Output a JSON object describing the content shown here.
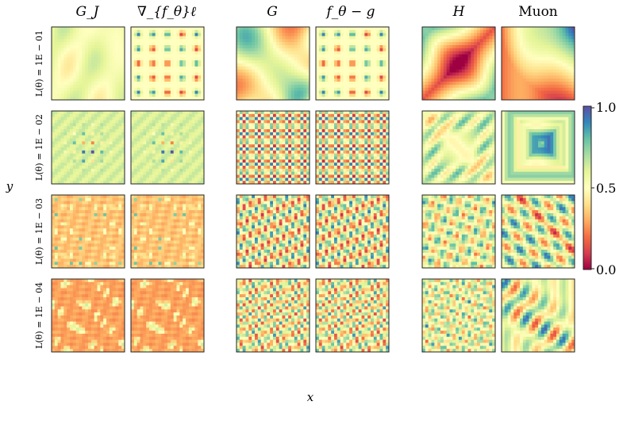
{
  "chart_data": {
    "type": "heatmap",
    "column_titles": [
      "G_J",
      "∇_{f_θ}ℓ",
      "G",
      "f_θ − g",
      "H",
      "Muon"
    ],
    "row_labels": [
      "L(θ) = 1E − 01",
      "L(θ) = 1E − 02",
      "L(θ) = 1E − 03",
      "L(θ) = 1E − 04"
    ],
    "xlabel": "x",
    "ylabel": "y",
    "colorbar": {
      "range": [
        0.0,
        1.0
      ],
      "ticks": [
        "0.0",
        "0.5",
        "1.0"
      ],
      "colormap": "Spectral",
      "colors": [
        "#9e0142",
        "#d53e4f",
        "#f46d43",
        "#fdae61",
        "#fee08b",
        "#ffffbf",
        "#e6f598",
        "#abdda4",
        "#66c2a5",
        "#3288bd",
        "#5e4fa2"
      ]
    },
    "grid": false,
    "panel_patterns": [
      [
        "smooth-low-freq",
        "dot-lattice",
        "smooth-blobs",
        "dot-lattice",
        "diagonal-gradient",
        "corner-gradient"
      ],
      [
        "central-dots",
        "central-dots",
        "checker-lattice",
        "checker-lattice",
        "diagonal-ridges",
        "framed-square"
      ],
      [
        "scattered-dots",
        "scattered-dots",
        "diagonal-checker",
        "diagonal-checker",
        "noisy-checker",
        "framed-square-diagonals"
      ],
      [
        "diagonal-streaks",
        "diagonal-streaks",
        "fine-diagonal",
        "fine-diagonal",
        "noisy-fine",
        "diagonal-bands"
      ]
    ]
  }
}
